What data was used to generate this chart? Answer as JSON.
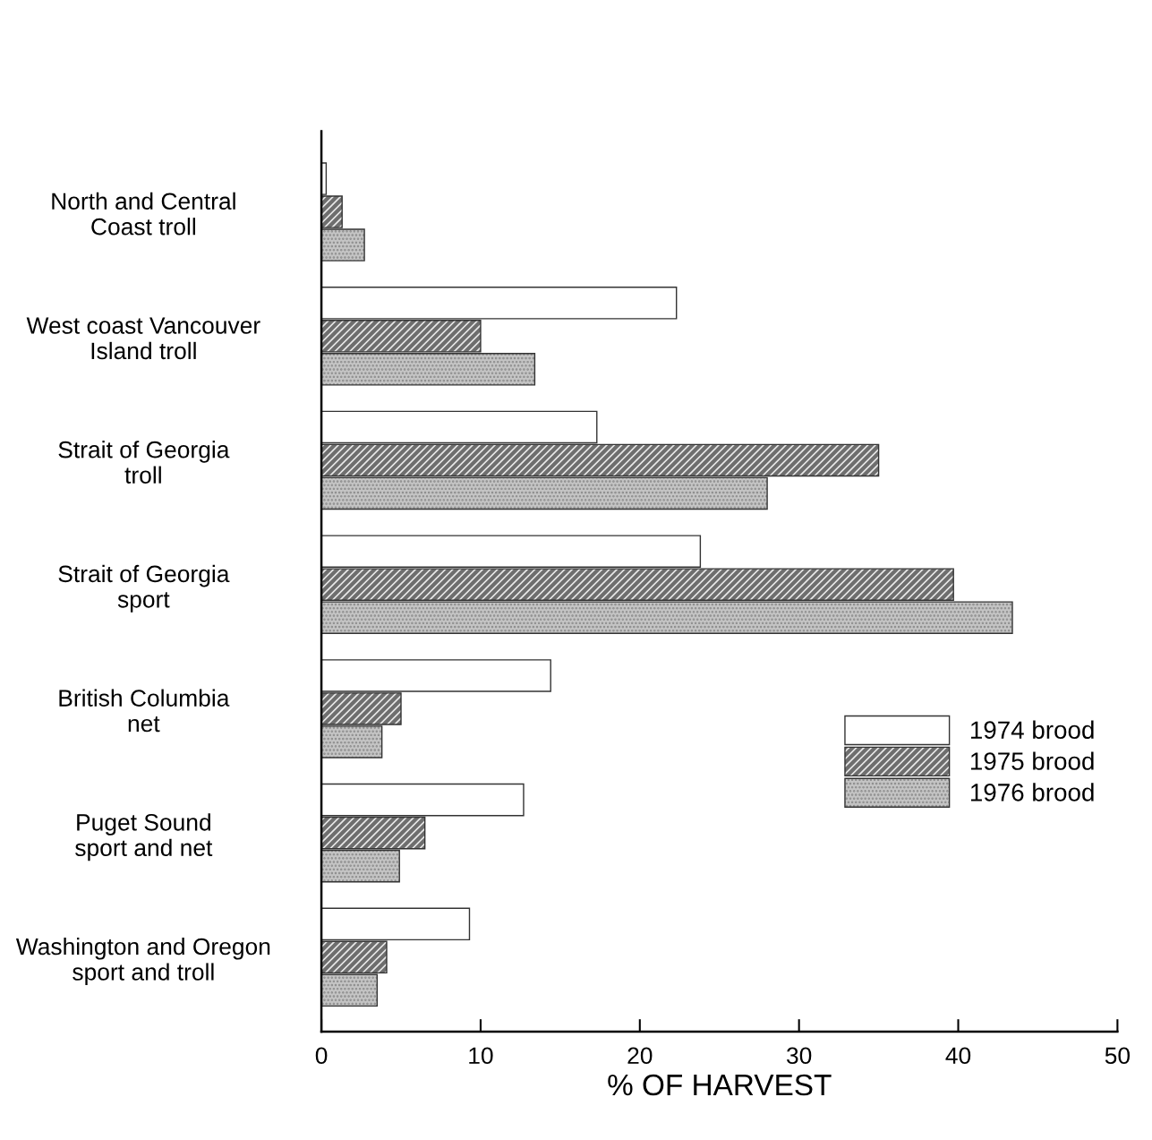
{
  "chart_data": {
    "type": "bar",
    "orientation": "horizontal",
    "xlabel": "% OF HARVEST",
    "categories": [
      "North and Central\nCoast troll",
      "West coast Vancouver\nIsland troll",
      "Strait of Georgia\ntroll",
      "Strait of Georgia\nsport",
      "British Columbia\nnet",
      "Puget Sound\nsport and net",
      "Washington and Oregon\nsport and troll"
    ],
    "series": [
      {
        "name": "1974 brood",
        "color": "#ffffff",
        "values": [
          0.3,
          22.3,
          17.3,
          23.8,
          14.4,
          12.7,
          9.3
        ]
      },
      {
        "name": "1975 brood",
        "color": "#6e6e6e",
        "values": [
          1.3,
          10.0,
          35.0,
          39.7,
          5.0,
          6.5,
          4.1
        ]
      },
      {
        "name": "1976 brood",
        "color": "#c4c4c4",
        "values": [
          2.7,
          13.4,
          28.0,
          43.4,
          3.8,
          4.9,
          3.5
        ]
      }
    ],
    "xlim": [
      0,
      50
    ],
    "xticks": [
      0,
      10,
      20,
      30,
      40,
      50
    ],
    "grid": false,
    "legend": "right"
  }
}
